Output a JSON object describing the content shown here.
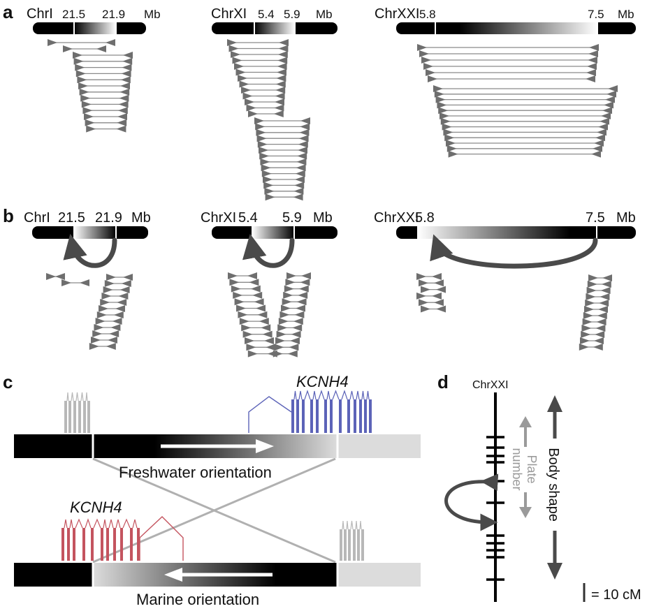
{
  "panels": {
    "a": "a",
    "b": "b",
    "c": "c",
    "d": "d"
  },
  "panel_a": {
    "chr1": {
      "name": "ChrI",
      "start": "21.5",
      "end": "21.9",
      "unit": "Mb"
    },
    "chr11": {
      "name": "ChrXI",
      "start": "5.4",
      "end": "5.9",
      "unit": "Mb"
    },
    "chr21": {
      "name": "ChrXXI",
      "start": "5.8",
      "end": "7.5",
      "unit": "Mb"
    }
  },
  "panel_b": {
    "chr1": {
      "name": "ChrI",
      "start": "21.5",
      "end": "21.9",
      "unit": "Mb"
    },
    "chr11": {
      "name": "ChrXI",
      "start": "5.4",
      "end": "5.9",
      "unit": "Mb"
    },
    "chr21": {
      "name": "ChrXXI",
      "start": "5.8",
      "end": "7.5",
      "unit": "Mb"
    }
  },
  "panel_c": {
    "gene_top": "KCNH4",
    "gene_bottom": "KCNH4",
    "freshwater_label": "Freshwater orientation",
    "marine_label": "Marine orientation",
    "colors": {
      "freshwater_gene": "#5c63b8",
      "marine_gene": "#c4545f",
      "flank_gene": "#b8b8b8"
    }
  },
  "panel_d": {
    "chromosome": "ChrXXI",
    "plate_label_1": "Plate",
    "plate_label_2": "number",
    "body_shape_label": "Body shape",
    "scale_label": "= 10 cM"
  }
}
